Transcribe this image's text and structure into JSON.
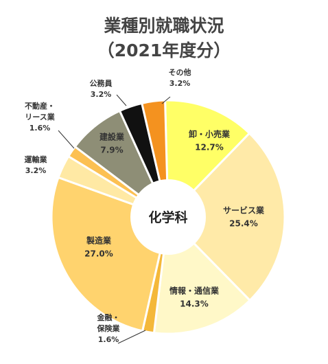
{
  "chart_data": {
    "type": "pie",
    "donut": true,
    "title": "業種別就職状況",
    "subtitle": "（2021年度分）",
    "center_label": "化学科",
    "categories": [
      "卸・小売業",
      "サービス業",
      "情報・通信業",
      "金融・保険業",
      "製造業",
      "運輸業",
      "不動産・リース業",
      "建設業",
      "公務員",
      "その他"
    ],
    "values": [
      12.7,
      25.4,
      14.3,
      1.6,
      27.0,
      3.2,
      1.6,
      7.9,
      3.2,
      3.2
    ],
    "value_labels": [
      "12.7%",
      "25.4%",
      "14.3%",
      "1.6%",
      "27.0%",
      "3.2%",
      "1.6%",
      "7.9%",
      "3.2%",
      "3.2%"
    ],
    "label_lines": [
      [
        "卸・小売業"
      ],
      [
        "サービス業"
      ],
      [
        "情報・通信業"
      ],
      [
        "金融・",
        "保険業"
      ],
      [
        "製造業"
      ],
      [
        "運輸業"
      ],
      [
        "不動産・",
        "リース業"
      ],
      [
        "建設業"
      ],
      [
        "公務員"
      ],
      [
        "その他"
      ]
    ],
    "colors": [
      "#ffff66",
      "#ffeaa8",
      "#fff8c8",
      "#f4b83a",
      "#ffd36e",
      "#ffe9a4",
      "#fcc052",
      "#8e8e76",
      "#111111",
      "#f4921f"
    ]
  }
}
